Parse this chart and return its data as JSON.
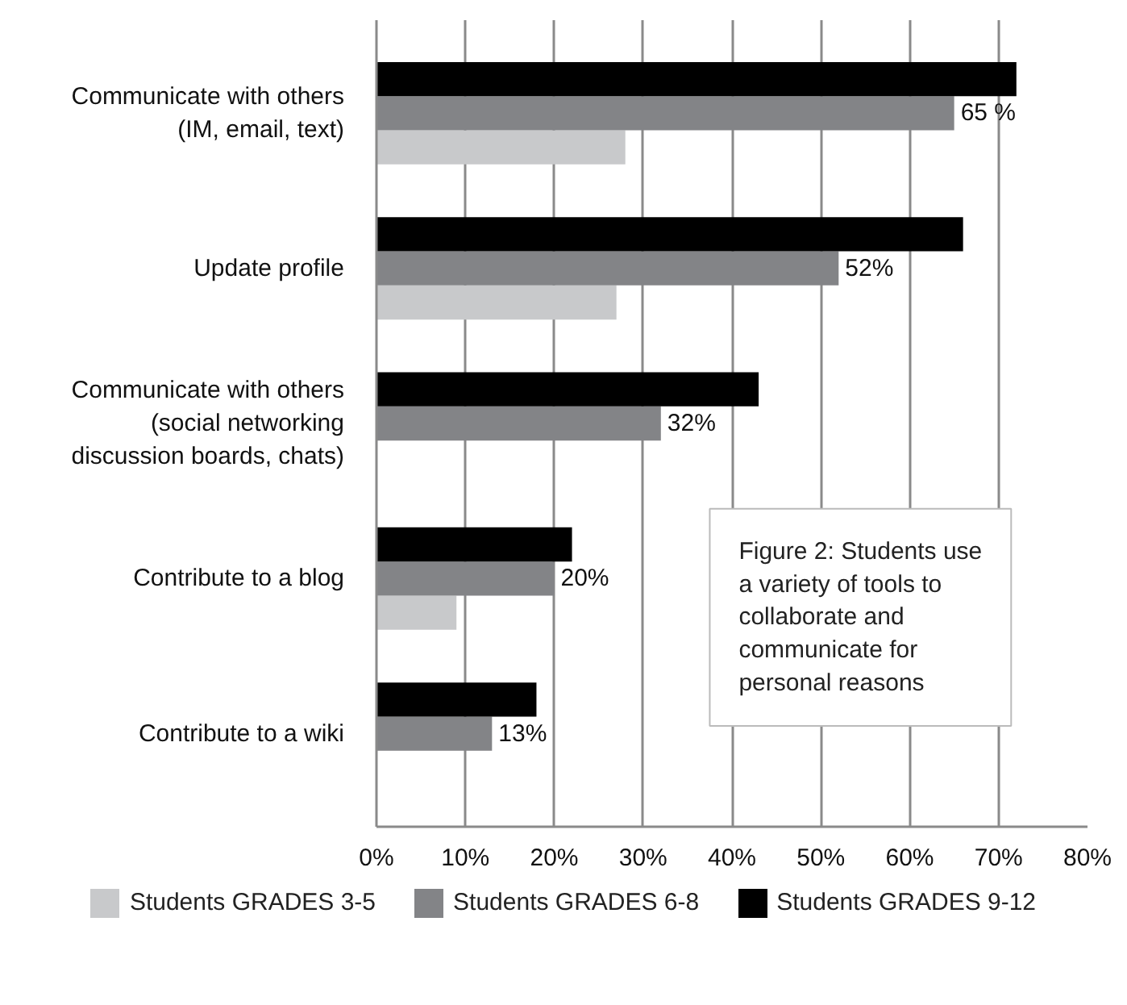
{
  "chart_data": {
    "type": "bar",
    "orientation": "horizontal",
    "categories": [
      "Communicate with others (IM, email, text)",
      "Update profile",
      "Communicate with others (social networking discussion boards, chats)",
      "Contribute to a blog",
      "Contribute to a wiki"
    ],
    "series": [
      {
        "name": "Students GRADES 3-5",
        "color": "#c8c9cb",
        "values": [
          28,
          27,
          null,
          9,
          null
        ]
      },
      {
        "name": "Students GRADES 6-8",
        "color": "#838487",
        "values": [
          65,
          52,
          32,
          20,
          13
        ],
        "value_labels": [
          "65 %",
          "52%",
          "32%",
          "20%",
          "13%"
        ]
      },
      {
        "name": "Students GRADES 9-12",
        "color": "#000000",
        "values": [
          72,
          66,
          43,
          22,
          18
        ]
      }
    ],
    "xlim": [
      0,
      80
    ],
    "xticks": [
      {
        "value": 0,
        "label": "0%"
      },
      {
        "value": 10,
        "label": "10%"
      },
      {
        "value": 20,
        "label": "20%"
      },
      {
        "value": 30,
        "label": "30%"
      },
      {
        "value": 40,
        "label": "40%"
      },
      {
        "value": 50,
        "label": "50%"
      },
      {
        "value": 60,
        "label": "60%"
      },
      {
        "value": 70,
        "label": "70%"
      },
      {
        "value": 80,
        "label": "80%"
      }
    ],
    "grid": "x",
    "legend": "bottom",
    "annotations": [
      "Figure 2: Students use a variety of tools to collaborate and communicate for personal reasons"
    ]
  }
}
